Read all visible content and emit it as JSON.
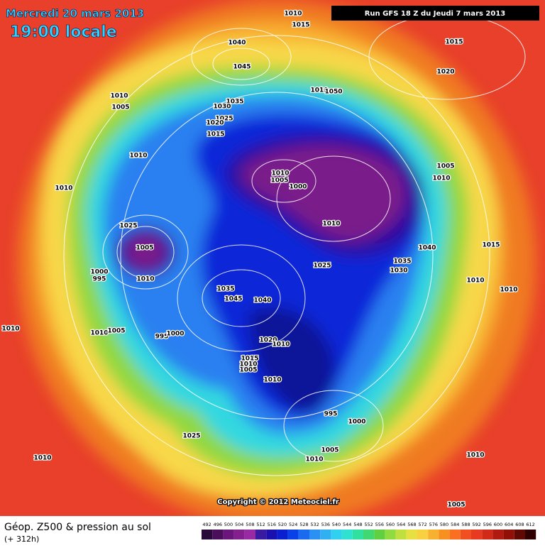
{
  "header": {
    "date": "Mercredi 20 mars 2013",
    "time": "19:00 locale",
    "run": "Run GFS 18 Z du Jeudi 7 mars 2013"
  },
  "map": {
    "copyright": "Copyright © 2012 Meteociel.fr",
    "isobar_labels": [
      1010,
      1015,
      1040,
      1045,
      1015,
      1020,
      1010,
      1005,
      1035,
      1030,
      1025,
      1020,
      1015,
      1010,
      1050,
      1010,
      1010,
      1010,
      1005,
      1000,
      1005,
      1010,
      1025,
      1005,
      1010,
      1000,
      995,
      1010,
      1040,
      1035,
      1030,
      1025,
      1015,
      1010,
      1010,
      1035,
      1045,
      1040,
      1010,
      1010,
      1005,
      995,
      1000,
      1020,
      1010,
      1015,
      1010,
      1005,
      1010,
      995,
      1000,
      1025,
      1005,
      1010,
      1010,
      1010,
      1005
    ]
  },
  "legend": {
    "title": "Géop. Z500 & pression au sol",
    "lead": "(+ 312h)",
    "levels": [
      492,
      496,
      500,
      504,
      508,
      512,
      516,
      520,
      524,
      528,
      532,
      536,
      540,
      544,
      548,
      552,
      556,
      560,
      564,
      568,
      572,
      576,
      580,
      584,
      588,
      592,
      596,
      600,
      604,
      608,
      612
    ],
    "colors": [
      "#2a0a3a",
      "#4a0e5a",
      "#6a167a",
      "#84208e",
      "#9a2aa4",
      "#3a1aa0",
      "#1a10b0",
      "#0a20d0",
      "#0a40e8",
      "#1a6af0",
      "#2a90f4",
      "#30b0f0",
      "#30d0f0",
      "#30e0d0",
      "#30e0a0",
      "#40d870",
      "#60d040",
      "#90dc40",
      "#c0e040",
      "#e8e040",
      "#f8d040",
      "#f8b030",
      "#f89020",
      "#f87020",
      "#f05020",
      "#e83a20",
      "#d02a18",
      "#b01a10",
      "#901008",
      "#600804",
      "#300000"
    ]
  }
}
